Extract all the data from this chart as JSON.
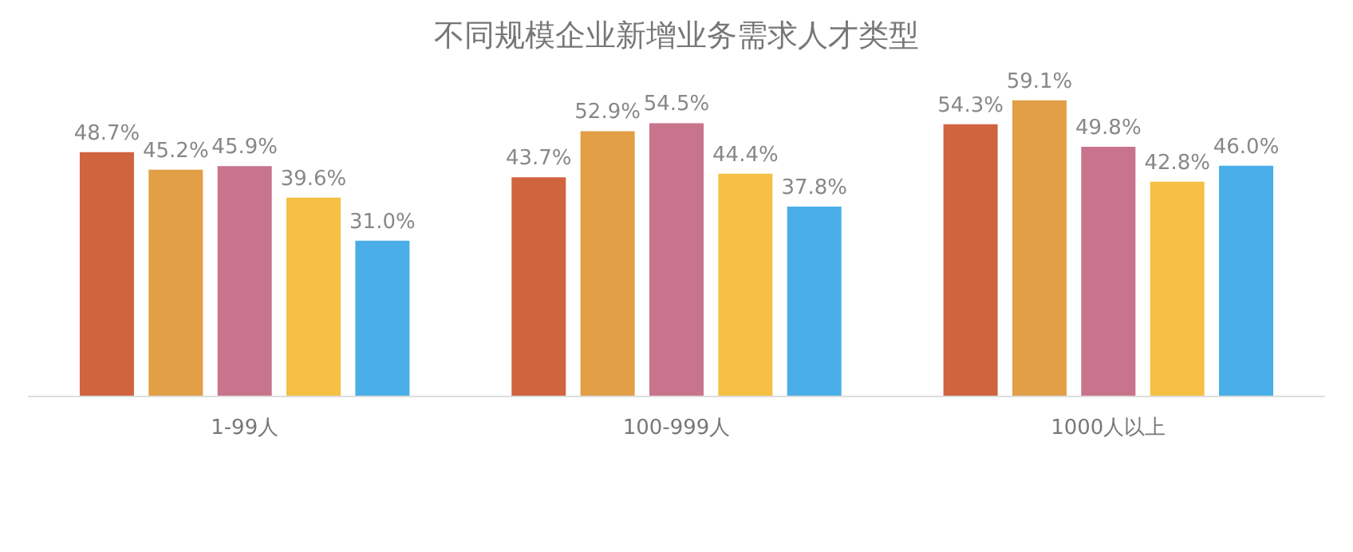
{
  "chart_data": {
    "type": "bar",
    "title": "不同规模企业新增业务需求人才类型",
    "categories": [
      "1-99人",
      "100-999人",
      "1000人以上"
    ],
    "series": [
      {
        "color": "#d0643f",
        "values": [
          48.7,
          43.7,
          54.3
        ],
        "value_labels": [
          "48.7%",
          "43.7%",
          "54.3%"
        ]
      },
      {
        "color": "#e29f46",
        "values": [
          45.2,
          52.9,
          59.1
        ],
        "value_labels": [
          "45.2%",
          "52.9%",
          "59.1%"
        ]
      },
      {
        "color": "#c8748c",
        "values": [
          45.9,
          54.5,
          49.8
        ],
        "value_labels": [
          "45.9%",
          "54.5%",
          "49.8%"
        ]
      },
      {
        "color": "#f5c044",
        "values": [
          39.6,
          44.4,
          42.8
        ],
        "value_labels": [
          "39.6%",
          "44.4%",
          "42.8%"
        ]
      },
      {
        "color": "#4aaee8",
        "values": [
          31.0,
          37.8,
          46.0
        ],
        "value_labels": [
          "31.0%",
          "37.8%",
          "46.0%"
        ]
      }
    ]
  }
}
